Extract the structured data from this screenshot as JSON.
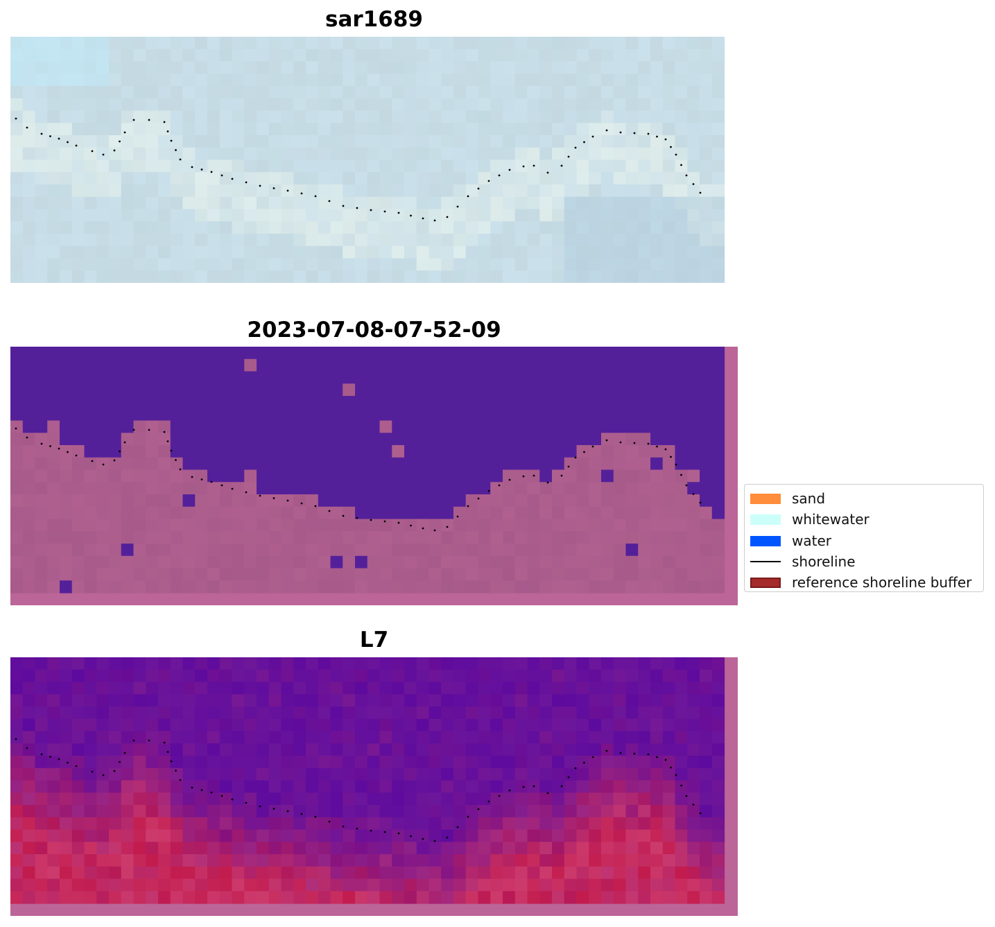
{
  "panels": [
    {
      "title": "sar1689",
      "kind": "rgb"
    },
    {
      "title": "2023-07-08-07-52-09",
      "kind": "classification"
    },
    {
      "title": "L7",
      "kind": "index"
    }
  ],
  "legend": {
    "items": [
      {
        "label": "sand",
        "kind": "patch",
        "color": "#ff8c3a"
      },
      {
        "label": "whitewater",
        "kind": "patch",
        "color": "#ccfff9"
      },
      {
        "label": "water",
        "kind": "patch",
        "color": "#0055ff"
      },
      {
        "label": "shoreline",
        "kind": "line",
        "color": "#000000"
      },
      {
        "label": "reference shoreline buffer",
        "kind": "patch",
        "color": "#a52a2a",
        "edge": "#7a1a1a"
      }
    ]
  },
  "colors": {
    "rgb_base": "#c3d8e0",
    "class_water": "#54209a",
    "class_land": "#b0608f",
    "class_border": "#bc6598",
    "index_water": "#5d0a9e",
    "index_land": "#c21b4d",
    "shoreline": "#000000"
  }
}
